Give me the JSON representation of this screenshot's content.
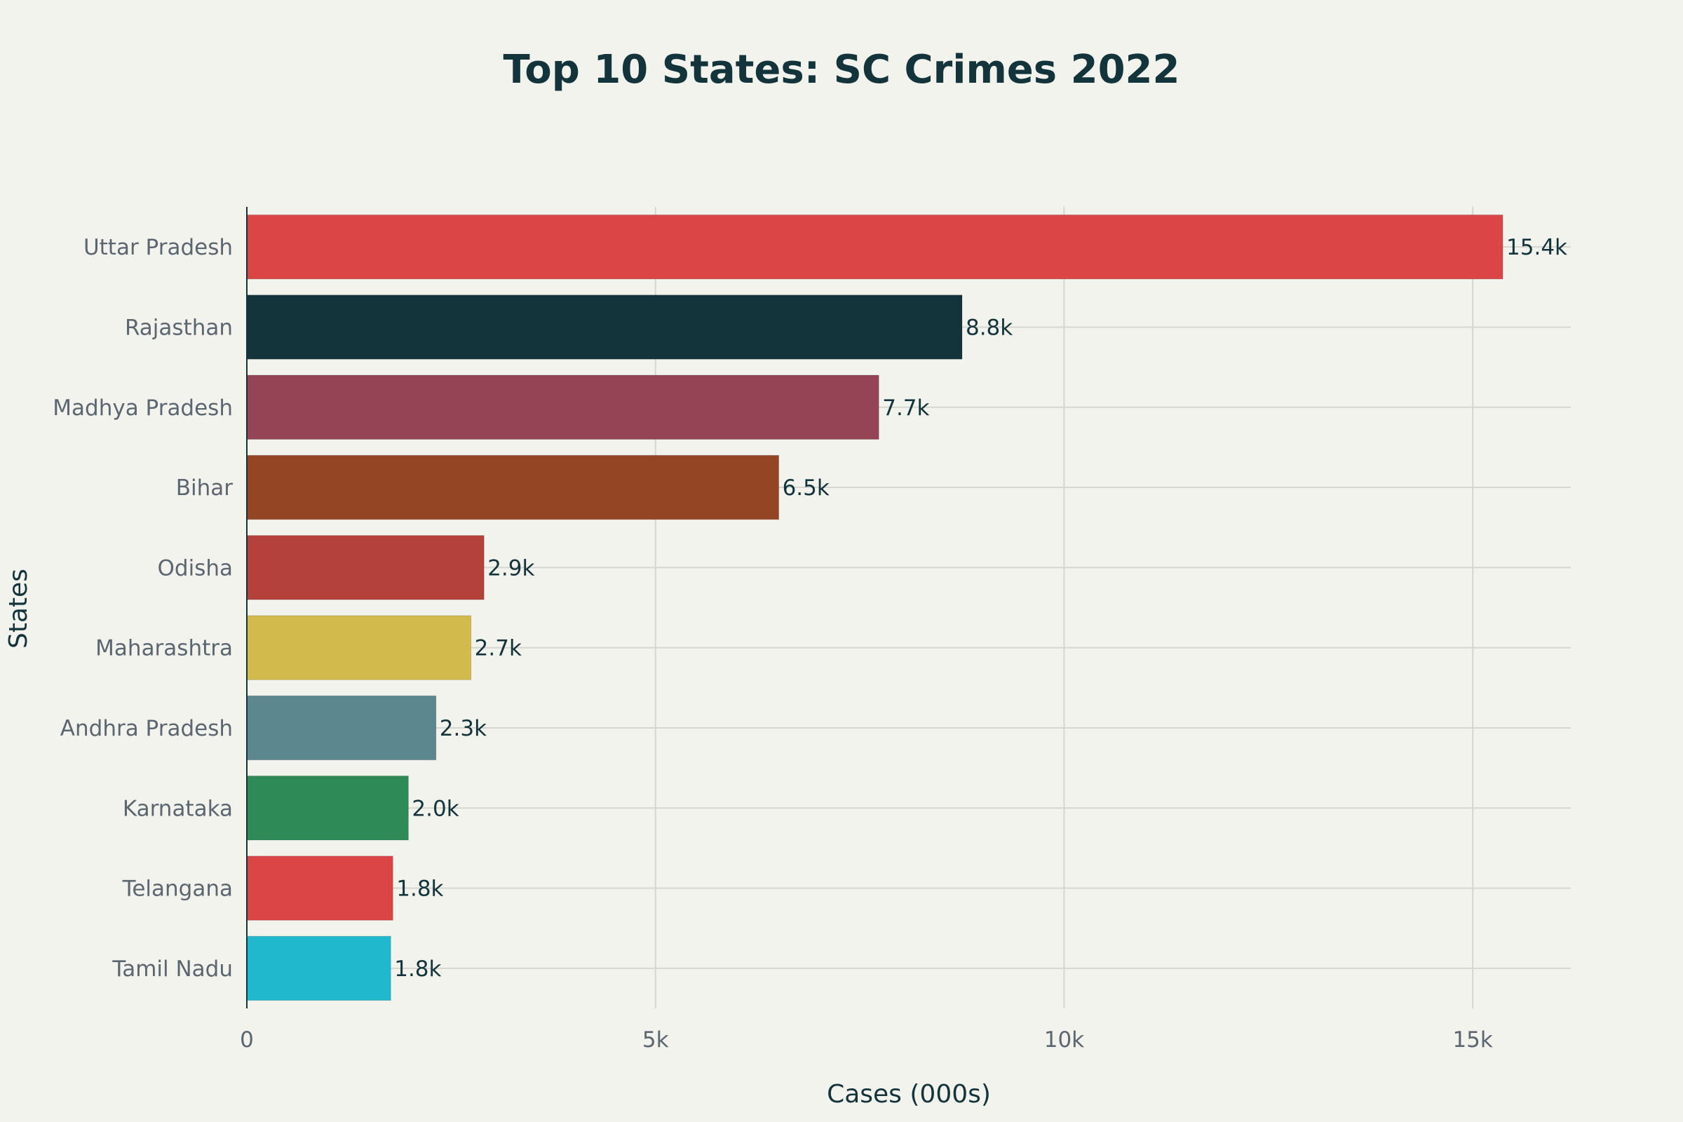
{
  "chart_data": {
    "type": "bar",
    "orientation": "horizontal",
    "title": "Top 10 States: SC Crimes 2022",
    "xlabel": "Cases (000s)",
    "ylabel": "States",
    "xlim": [
      0,
      16200
    ],
    "x_ticks": [
      0,
      5000,
      10000,
      15000
    ],
    "x_tick_labels": [
      "0",
      "5k",
      "10k",
      "15k"
    ],
    "grid": true,
    "legend": "none",
    "categories": [
      "Uttar Pradesh",
      "Rajasthan",
      "Madhya Pradesh",
      "Bihar",
      "Odisha",
      "Maharashtra",
      "Andhra Pradesh",
      "Karnataka",
      "Telangana",
      "Tamil Nadu"
    ],
    "values": [
      15368,
      8752,
      7733,
      6509,
      2902,
      2743,
      2315,
      1977,
      1787,
      1761
    ],
    "data_labels": [
      "15.4k",
      "8.8k",
      "7.7k",
      "6.5k",
      "2.9k",
      "2.7k",
      "2.3k",
      "2.0k",
      "1.8k",
      "1.8k"
    ],
    "colors": [
      "#DB4545",
      "#13343B",
      "#944454",
      "#944523",
      "#B4413C",
      "#D2BA4C",
      "#5D878F",
      "#2E8B57",
      "#DB4545",
      "#1FB8CD"
    ]
  }
}
